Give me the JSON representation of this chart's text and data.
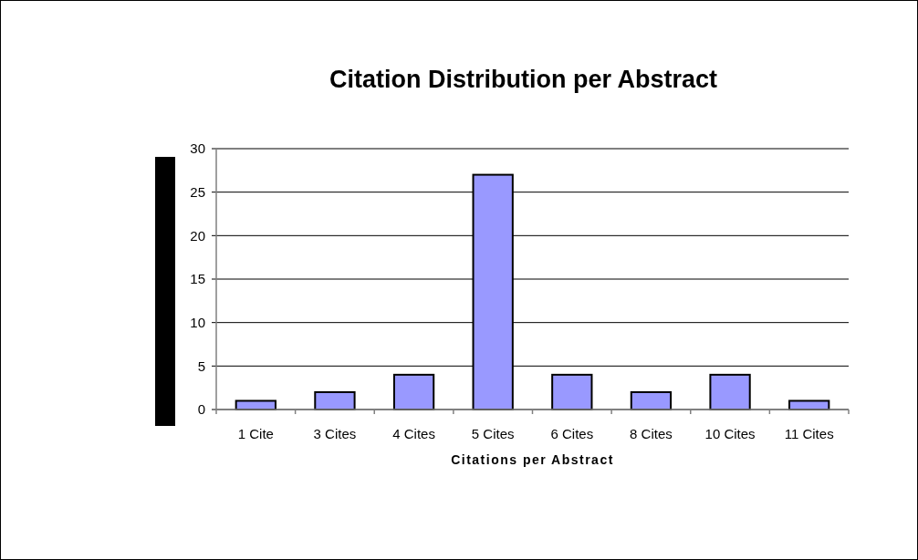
{
  "chart_data": {
    "type": "bar",
    "title": "Citation Distribution per Abstract",
    "xlabel": "Citations per Abstract",
    "categories": [
      "1 Cite",
      "3 Cites",
      "4 Cites",
      "5 Cites",
      "6 Cites",
      "8 Cites",
      "10 Cites",
      "11 Cites"
    ],
    "values": [
      1,
      2,
      4,
      27,
      4,
      2,
      4,
      1
    ],
    "color": "#9999ff",
    "ylim": [
      0,
      30
    ],
    "yticks": [
      0,
      5,
      10,
      15,
      20,
      25,
      30
    ],
    "grid": "y"
  }
}
